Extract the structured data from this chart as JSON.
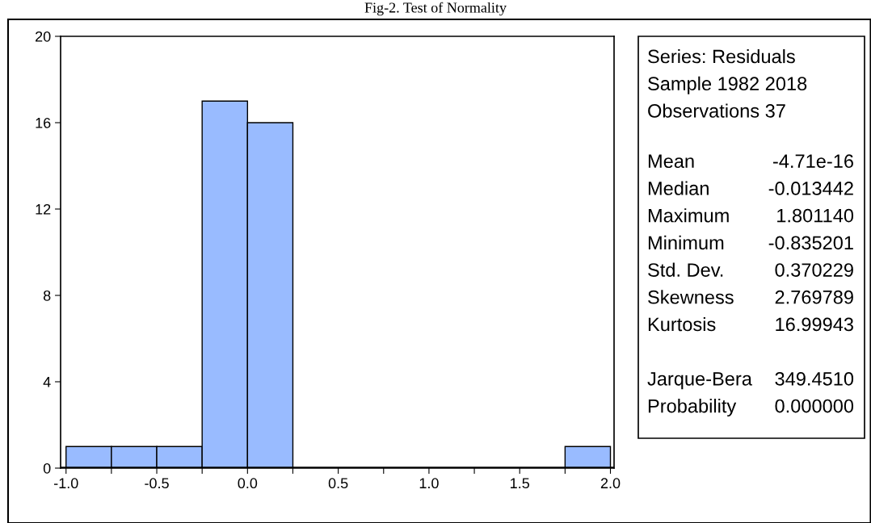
{
  "chart_data": {
    "type": "histogram",
    "title": "Fig-2. Test of Normality",
    "bins": [
      -1.0,
      -0.75,
      -0.5,
      -0.25,
      0.0,
      0.25,
      0.5,
      0.75,
      1.0,
      1.25,
      1.5,
      1.75,
      2.0
    ],
    "values": [
      1,
      1,
      1,
      17,
      16,
      0,
      0,
      0,
      0,
      0,
      0,
      1
    ],
    "color": "#99bbff",
    "xlim": [
      -1.03,
      2.02
    ],
    "ylim": [
      0,
      20
    ],
    "xticks": [
      {
        "value": -1.0,
        "label": "-1.0"
      },
      {
        "value": -0.75,
        "label": null
      },
      -0.5,
      {
        "value": -0.25,
        "label": null
      },
      {
        "value": 0.0,
        "label": "0.0"
      },
      {
        "value": 0.25,
        "label": null
      },
      0.5,
      {
        "value": 0.75,
        "label": null
      },
      {
        "value": 1.0,
        "label": "1.0"
      },
      {
        "value": 1.25,
        "label": null
      },
      1.5,
      {
        "value": 1.75,
        "label": null
      },
      {
        "value": 2.0,
        "label": "2.0"
      }
    ],
    "yticks": [
      0,
      4,
      8,
      12,
      16,
      20
    ],
    "grid": false,
    "annotations": [
      "Series: Residuals",
      "Sample 1982 2018",
      "Observations 37",
      "Mean",
      "-4.71e-16",
      "Median",
      "-0.013442",
      "Maximum",
      "1.801140",
      "Minimum",
      "-0.835201",
      "Std. Dev.",
      "0.370229",
      "Skewness",
      "2.769789",
      "Kurtosis",
      "16.99943",
      "Jarque-Bera",
      "349.4510",
      "Probability",
      "0.000000"
    ]
  }
}
